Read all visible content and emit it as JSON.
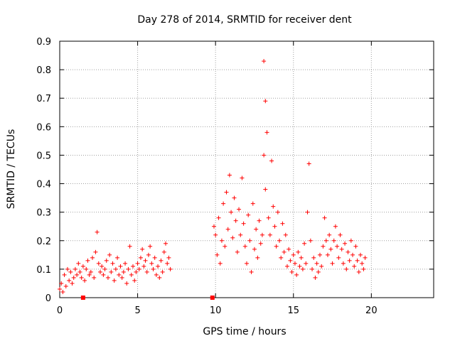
{
  "chart_data": {
    "type": "scatter",
    "title": "Day 278 of 2014, SRMTID for receiver dent",
    "xlabel": "GPS time / hours",
    "ylabel": "SRMTID / TECUs",
    "xlim": [
      0,
      24
    ],
    "ylim": [
      0,
      0.9
    ],
    "x_ticks": [
      0,
      5,
      10,
      15,
      20
    ],
    "y_ticks": [
      0,
      0.1,
      0.2,
      0.3,
      0.4,
      0.5,
      0.6,
      0.7,
      0.8,
      0.9
    ],
    "x_tick_labels": [
      "0",
      "5",
      "10",
      "15",
      "20"
    ],
    "y_tick_labels": [
      "0",
      "0.1",
      "0.2",
      "0.3",
      "0.4",
      "0.5",
      "0.6",
      "0.7",
      "0.8",
      "0.9"
    ],
    "grid": true,
    "series_color": "#ff0000",
    "marker": "plus",
    "series": [
      {
        "name": "SRMTID",
        "points": [
          [
            0.0,
            0.03
          ],
          [
            0.1,
            0.05
          ],
          [
            0.2,
            0.02
          ],
          [
            0.3,
            0.08
          ],
          [
            0.4,
            0.04
          ],
          [
            0.5,
            0.1
          ],
          [
            0.6,
            0.06
          ],
          [
            0.7,
            0.09
          ],
          [
            0.8,
            0.05
          ],
          [
            0.9,
            0.07
          ],
          [
            1.0,
            0.1
          ],
          [
            1.1,
            0.08
          ],
          [
            1.2,
            0.12
          ],
          [
            1.3,
            0.09
          ],
          [
            1.4,
            0.07
          ],
          [
            1.5,
            0.11
          ],
          [
            1.6,
            0.06
          ],
          [
            1.7,
            0.1
          ],
          [
            1.8,
            0.13
          ],
          [
            1.9,
            0.08
          ],
          [
            2.0,
            0.09
          ],
          [
            2.1,
            0.14
          ],
          [
            2.2,
            0.07
          ],
          [
            2.3,
            0.16
          ],
          [
            2.4,
            0.23
          ],
          [
            2.5,
            0.12
          ],
          [
            2.6,
            0.09
          ],
          [
            2.7,
            0.11
          ],
          [
            2.8,
            0.08
          ],
          [
            2.9,
            0.1
          ],
          [
            3.0,
            0.13
          ],
          [
            3.1,
            0.07
          ],
          [
            3.2,
            0.15
          ],
          [
            3.3,
            0.09
          ],
          [
            3.4,
            0.12
          ],
          [
            3.5,
            0.06
          ],
          [
            3.6,
            0.1
          ],
          [
            3.7,
            0.14
          ],
          [
            3.8,
            0.08
          ],
          [
            3.9,
            0.11
          ],
          [
            4.0,
            0.07
          ],
          [
            4.1,
            0.09
          ],
          [
            4.2,
            0.12
          ],
          [
            4.3,
            0.05
          ],
          [
            4.4,
            0.1
          ],
          [
            4.5,
            0.18
          ],
          [
            4.6,
            0.08
          ],
          [
            4.7,
            0.11
          ],
          [
            4.8,
            0.06
          ],
          [
            4.9,
            0.09
          ],
          [
            5.0,
            0.12
          ],
          [
            5.1,
            0.1
          ],
          [
            5.2,
            0.14
          ],
          [
            5.3,
            0.17
          ],
          [
            5.4,
            0.11
          ],
          [
            5.5,
            0.13
          ],
          [
            5.6,
            0.09
          ],
          [
            5.7,
            0.15
          ],
          [
            5.8,
            0.18
          ],
          [
            5.9,
            0.12
          ],
          [
            6.0,
            0.1
          ],
          [
            6.1,
            0.14
          ],
          [
            6.2,
            0.08
          ],
          [
            6.3,
            0.11
          ],
          [
            6.4,
            0.07
          ],
          [
            6.5,
            0.13
          ],
          [
            6.6,
            0.09
          ],
          [
            6.7,
            0.16
          ],
          [
            6.8,
            0.19
          ],
          [
            6.9,
            0.12
          ],
          [
            7.0,
            0.14
          ],
          [
            7.1,
            0.1
          ],
          [
            9.9,
            0.25
          ],
          [
            10.0,
            0.22
          ],
          [
            10.1,
            0.15
          ],
          [
            10.2,
            0.28
          ],
          [
            10.3,
            0.12
          ],
          [
            10.4,
            0.2
          ],
          [
            10.5,
            0.33
          ],
          [
            10.6,
            0.18
          ],
          [
            10.7,
            0.37
          ],
          [
            10.8,
            0.24
          ],
          [
            10.9,
            0.43
          ],
          [
            11.0,
            0.3
          ],
          [
            11.1,
            0.21
          ],
          [
            11.2,
            0.35
          ],
          [
            11.3,
            0.27
          ],
          [
            11.4,
            0.16
          ],
          [
            11.5,
            0.31
          ],
          [
            11.6,
            0.22
          ],
          [
            11.7,
            0.42
          ],
          [
            11.8,
            0.26
          ],
          [
            11.9,
            0.18
          ],
          [
            12.0,
            0.12
          ],
          [
            12.1,
            0.29
          ],
          [
            12.2,
            0.2
          ],
          [
            12.3,
            0.09
          ],
          [
            12.4,
            0.33
          ],
          [
            12.5,
            0.17
          ],
          [
            12.6,
            0.24
          ],
          [
            12.7,
            0.14
          ],
          [
            12.8,
            0.27
          ],
          [
            12.9,
            0.19
          ],
          [
            13.0,
            0.22
          ],
          [
            13.1,
            0.83
          ],
          [
            13.2,
            0.69
          ],
          [
            13.3,
            0.58
          ],
          [
            13.1,
            0.5
          ],
          [
            13.2,
            0.38
          ],
          [
            13.4,
            0.28
          ],
          [
            13.5,
            0.22
          ],
          [
            13.6,
            0.48
          ],
          [
            13.7,
            0.32
          ],
          [
            13.8,
            0.25
          ],
          [
            13.9,
            0.18
          ],
          [
            14.0,
            0.3
          ],
          [
            14.1,
            0.2
          ],
          [
            14.2,
            0.14
          ],
          [
            14.3,
            0.26
          ],
          [
            14.4,
            0.16
          ],
          [
            14.5,
            0.22
          ],
          [
            14.6,
            0.11
          ],
          [
            14.7,
            0.17
          ],
          [
            14.8,
            0.13
          ],
          [
            14.9,
            0.09
          ],
          [
            15.0,
            0.15
          ],
          [
            15.1,
            0.12
          ],
          [
            15.2,
            0.08
          ],
          [
            15.3,
            0.16
          ],
          [
            15.4,
            0.11
          ],
          [
            15.5,
            0.14
          ],
          [
            15.6,
            0.1
          ],
          [
            15.7,
            0.19
          ],
          [
            15.8,
            0.12
          ],
          [
            15.9,
            0.3
          ],
          [
            16.0,
            0.47
          ],
          [
            16.1,
            0.2
          ],
          [
            16.2,
            0.1
          ],
          [
            16.3,
            0.14
          ],
          [
            16.4,
            0.07
          ],
          [
            16.5,
            0.12
          ],
          [
            16.6,
            0.09
          ],
          [
            16.7,
            0.15
          ],
          [
            16.8,
            0.11
          ],
          [
            16.9,
            0.18
          ],
          [
            17.0,
            0.28
          ],
          [
            17.1,
            0.2
          ],
          [
            17.2,
            0.15
          ],
          [
            17.3,
            0.22
          ],
          [
            17.4,
            0.17
          ],
          [
            17.5,
            0.12
          ],
          [
            17.6,
            0.2
          ],
          [
            17.7,
            0.25
          ],
          [
            17.8,
            0.18
          ],
          [
            17.9,
            0.14
          ],
          [
            18.0,
            0.22
          ],
          [
            18.1,
            0.17
          ],
          [
            18.2,
            0.12
          ],
          [
            18.3,
            0.19
          ],
          [
            18.4,
            0.1
          ],
          [
            18.5,
            0.16
          ],
          [
            18.6,
            0.13
          ],
          [
            18.7,
            0.2
          ],
          [
            18.8,
            0.15
          ],
          [
            18.9,
            0.11
          ],
          [
            19.0,
            0.18
          ],
          [
            19.1,
            0.13
          ],
          [
            19.2,
            0.09
          ],
          [
            19.3,
            0.15
          ],
          [
            19.4,
            0.12
          ],
          [
            19.5,
            0.1
          ],
          [
            19.6,
            0.14
          ]
        ]
      }
    ],
    "squares": [
      [
        1.5,
        0.0
      ],
      [
        9.8,
        0.0
      ]
    ]
  }
}
